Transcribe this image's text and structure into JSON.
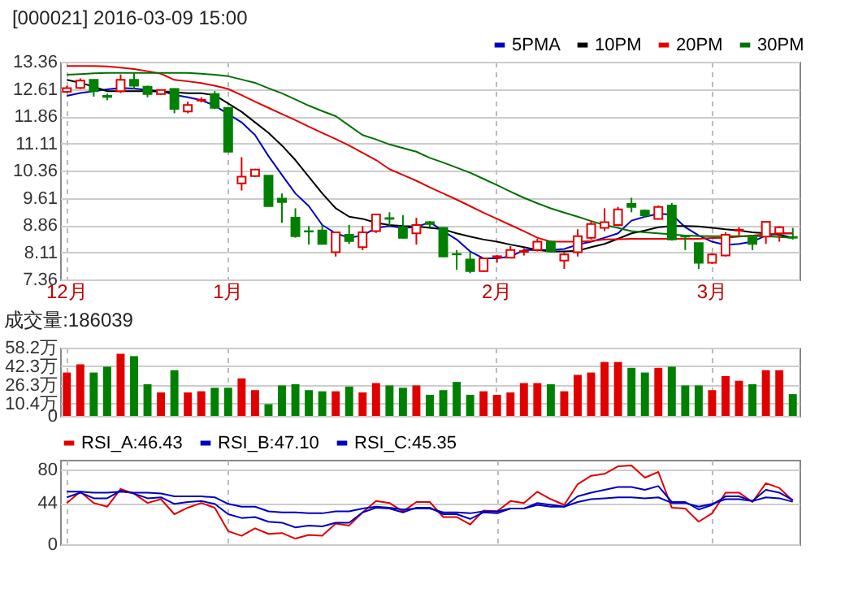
{
  "chart_data": [
    {
      "type": "candlestick",
      "title": "[000021] 2016-03-09 15:00",
      "categories": [
        "12月",
        null,
        null,
        null,
        null,
        null,
        null,
        null,
        null,
        null,
        null,
        null,
        "1月",
        null,
        null,
        null,
        null,
        null,
        null,
        null,
        null,
        null,
        null,
        null,
        null,
        null,
        null,
        null,
        null,
        null,
        null,
        null,
        "2月",
        null,
        null,
        null,
        null,
        null,
        null,
        null,
        null,
        null,
        null,
        null,
        null,
        null,
        null,
        null,
        "3月",
        null,
        null,
        null,
        null,
        null,
        null
      ],
      "ohlc": [
        [
          12.53,
          12.7,
          12.5,
          12.63
        ],
        [
          12.64,
          12.9,
          12.61,
          12.84
        ],
        [
          12.86,
          12.86,
          12.4,
          12.55
        ],
        [
          12.42,
          12.48,
          12.3,
          12.39
        ],
        [
          12.55,
          13.01,
          12.5,
          12.86
        ],
        [
          12.86,
          13.07,
          12.61,
          12.7
        ],
        [
          12.67,
          12.7,
          12.38,
          12.47
        ],
        [
          12.47,
          12.6,
          12.45,
          12.58
        ],
        [
          12.61,
          12.63,
          11.94,
          12.06
        ],
        [
          11.99,
          12.26,
          11.94,
          12.17
        ],
        [
          12.29,
          12.38,
          12.24,
          12.31
        ],
        [
          12.47,
          12.55,
          12.06,
          12.09
        ],
        [
          12.09,
          12.09,
          10.88,
          10.88
        ],
        [
          10.01,
          10.73,
          9.81,
          10.19
        ],
        [
          10.21,
          10.41,
          10.19,
          10.39
        ],
        [
          10.22,
          10.22,
          9.38,
          9.38
        ],
        [
          9.59,
          9.73,
          8.92,
          9.49
        ],
        [
          9.06,
          9.32,
          8.51,
          8.55
        ],
        [
          8.69,
          8.83,
          8.32,
          8.68
        ],
        [
          8.71,
          8.86,
          8.34,
          8.34
        ],
        [
          8.11,
          8.68,
          7.99,
          8.66
        ],
        [
          8.59,
          8.86,
          8.34,
          8.42
        ],
        [
          8.25,
          8.83,
          8.17,
          8.66
        ],
        [
          8.69,
          9.17,
          8.64,
          9.15
        ],
        [
          9.05,
          9.21,
          8.83,
          9.03
        ],
        [
          8.8,
          9.13,
          8.48,
          8.51
        ],
        [
          8.63,
          9.06,
          8.32,
          8.86
        ],
        [
          8.94,
          8.97,
          8.8,
          8.89
        ],
        [
          8.78,
          8.8,
          7.99,
          7.99
        ],
        [
          8.06,
          8.17,
          7.63,
          8.05
        ],
        [
          7.91,
          8.11,
          7.53,
          7.59
        ],
        [
          7.59,
          7.96,
          7.57,
          7.94
        ],
        [
          7.97,
          8.03,
          7.82,
          8.0
        ],
        [
          7.96,
          8.28,
          7.94,
          8.17
        ],
        [
          8.12,
          8.22,
          8.02,
          8.14
        ],
        [
          8.17,
          8.48,
          8.13,
          8.4
        ],
        [
          8.4,
          8.43,
          8.11,
          8.13
        ],
        [
          7.88,
          8.11,
          7.65,
          8.05
        ],
        [
          8.11,
          8.74,
          7.99,
          8.55
        ],
        [
          8.51,
          8.98,
          8.46,
          8.89
        ],
        [
          8.78,
          9.32,
          8.69,
          8.94
        ],
        [
          8.86,
          9.36,
          8.83,
          9.29
        ],
        [
          9.44,
          9.61,
          9.21,
          9.36
        ],
        [
          9.26,
          9.29,
          9.06,
          9.13
        ],
        [
          9.03,
          9.4,
          9.01,
          9.36
        ],
        [
          9.4,
          9.47,
          8.43,
          8.46
        ],
        [
          8.56,
          8.59,
          8.17,
          8.54
        ],
        [
          8.36,
          8.36,
          7.65,
          7.82
        ],
        [
          7.82,
          8.09,
          7.79,
          8.05
        ],
        [
          8.02,
          8.66,
          7.99,
          8.59
        ],
        [
          8.71,
          8.8,
          8.55,
          8.73
        ],
        [
          8.51,
          8.59,
          8.17,
          8.34
        ],
        [
          8.54,
          8.97,
          8.34,
          8.95
        ],
        [
          8.63,
          8.83,
          8.4,
          8.8
        ],
        [
          8.53,
          8.78,
          8.46,
          8.51
        ]
      ],
      "colors": [
        "#e00000",
        "#e00000",
        "#008000",
        "#008000",
        "#e00000",
        "#008000",
        "#008000",
        "#e00000",
        "#008000",
        "#e00000",
        "#e00000",
        "#008000",
        "#008000",
        "#e00000",
        "#e00000",
        "#008000",
        "#008000",
        "#008000",
        "#008000",
        "#008000",
        "#e00000",
        "#008000",
        "#e00000",
        "#e00000",
        "#008000",
        "#008000",
        "#e00000",
        "#008000",
        "#008000",
        "#008000",
        "#008000",
        "#e00000",
        "#e00000",
        "#e00000",
        "#e00000",
        "#e00000",
        "#008000",
        "#e00000",
        "#e00000",
        "#e00000",
        "#e00000",
        "#e00000",
        "#008000",
        "#008000",
        "#e00000",
        "#008000",
        "#008000",
        "#008000",
        "#e00000",
        "#e00000",
        "#e00000",
        "#008000",
        "#e00000",
        "#e00000",
        "#008000"
      ],
      "series": [
        {
          "name": "5PMA",
          "type": "line",
          "color": "#0000c0",
          "values": [
            12.42,
            12.5,
            12.55,
            12.6,
            12.64,
            12.62,
            12.58,
            12.55,
            12.45,
            12.38,
            12.3,
            12.15,
            11.92,
            11.69,
            11.34,
            10.76,
            10.24,
            9.73,
            9.38,
            8.86,
            8.63,
            8.51,
            8.57,
            8.78,
            8.83,
            8.78,
            8.8,
            8.94,
            8.69,
            8.46,
            8.13,
            7.94,
            7.94,
            7.99,
            8.17,
            8.17,
            8.17,
            8.2,
            8.32,
            8.4,
            8.51,
            8.63,
            8.98,
            9.09,
            9.17,
            9.15,
            8.8,
            8.57,
            8.4,
            8.31,
            8.34,
            8.4,
            8.57,
            8.63,
            8.63
          ]
        },
        {
          "name": "10PM",
          "type": "line",
          "color": "#000000",
          "values": [
            12.86,
            12.78,
            12.67,
            12.55,
            12.55,
            12.55,
            12.55,
            12.54,
            12.52,
            12.49,
            12.49,
            12.44,
            12.21,
            11.98,
            11.69,
            11.4,
            11.05,
            10.65,
            10.19,
            9.73,
            9.32,
            9.09,
            9.03,
            8.92,
            8.86,
            8.83,
            8.82,
            8.78,
            8.74,
            8.63,
            8.54,
            8.46,
            8.4,
            8.32,
            8.25,
            8.17,
            8.13,
            8.13,
            8.15,
            8.25,
            8.34,
            8.48,
            8.63,
            8.71,
            8.8,
            8.83,
            8.83,
            8.82,
            8.78,
            8.74,
            8.71,
            8.66,
            8.63,
            8.59,
            8.51
          ]
        },
        {
          "name": "20PM",
          "type": "line",
          "color": "#e00000",
          "values": [
            13.24,
            13.24,
            13.24,
            13.23,
            13.2,
            13.16,
            13.1,
            13.03,
            12.86,
            12.82,
            12.77,
            12.7,
            12.61,
            12.44,
            12.26,
            12.09,
            11.92,
            11.75,
            11.57,
            11.4,
            11.23,
            11.05,
            10.85,
            10.65,
            10.4,
            10.24,
            10.08,
            9.9,
            9.73,
            9.56,
            9.38,
            9.2,
            9.03,
            8.86,
            8.69,
            8.51,
            8.4,
            8.4,
            8.4,
            8.42,
            8.46,
            8.47,
            8.48,
            8.48,
            8.48,
            8.48,
            8.48,
            8.48,
            8.5,
            8.51,
            8.54,
            8.57,
            8.6,
            8.63,
            8.63
          ]
        },
        {
          "name": "30PM",
          "type": "line",
          "color": "#007000",
          "values": [
            13.0,
            13.02,
            13.04,
            13.05,
            13.05,
            13.05,
            13.05,
            13.05,
            13.05,
            13.05,
            13.03,
            13.0,
            12.96,
            12.87,
            12.78,
            12.63,
            12.49,
            12.32,
            12.15,
            12.0,
            11.86,
            11.6,
            11.34,
            11.22,
            11.08,
            10.98,
            10.88,
            10.71,
            10.58,
            10.44,
            10.3,
            10.13,
            9.96,
            9.78,
            9.61,
            9.46,
            9.32,
            9.2,
            9.09,
            8.97,
            8.86,
            8.78,
            8.69,
            8.66,
            8.63,
            8.6,
            8.57,
            8.56,
            8.55,
            8.55,
            8.55,
            8.55,
            8.55,
            8.53,
            8.51
          ]
        }
      ],
      "ylim": [
        7.36,
        13.36
      ],
      "yticks": [
        7.36,
        8.11,
        8.86,
        9.61,
        10.36,
        11.11,
        11.86,
        12.61,
        13.36
      ],
      "grid": true,
      "legend": "top right"
    },
    {
      "type": "bar",
      "title": "成交量:186039",
      "categories": [
        null,
        null,
        null,
        null,
        null,
        null,
        null,
        null,
        null,
        null,
        null,
        null,
        null,
        null,
        null,
        null,
        null,
        null,
        null,
        null,
        null,
        null,
        null,
        null,
        null,
        null,
        null,
        null,
        null,
        null,
        null,
        null,
        null,
        null,
        null,
        null,
        null,
        null,
        null,
        null,
        null,
        null,
        null,
        null,
        null,
        null,
        null,
        null,
        null,
        null,
        null,
        null,
        null,
        null,
        null
      ],
      "values": [
        37,
        44,
        37,
        42,
        53,
        51,
        27,
        20,
        39,
        20,
        21,
        24,
        24,
        32,
        22,
        10,
        26,
        27,
        22,
        21,
        21,
        25,
        20,
        28,
        26,
        24,
        26,
        18,
        22,
        29,
        18,
        21,
        18,
        20,
        28,
        28,
        27,
        21,
        35,
        37,
        46,
        46,
        41,
        37,
        41,
        42,
        26,
        26,
        22,
        34,
        30,
        27,
        39,
        39,
        18.6
      ],
      "colors": [
        "#e00000",
        "#e00000",
        "#008000",
        "#008000",
        "#e00000",
        "#008000",
        "#008000",
        "#e00000",
        "#008000",
        "#e00000",
        "#e00000",
        "#008000",
        "#008000",
        "#e00000",
        "#e00000",
        "#008000",
        "#008000",
        "#008000",
        "#008000",
        "#008000",
        "#e00000",
        "#008000",
        "#e00000",
        "#e00000",
        "#008000",
        "#008000",
        "#e00000",
        "#008000",
        "#008000",
        "#008000",
        "#008000",
        "#e00000",
        "#e00000",
        "#e00000",
        "#e00000",
        "#e00000",
        "#008000",
        "#e00000",
        "#e00000",
        "#e00000",
        "#e00000",
        "#e00000",
        "#008000",
        "#008000",
        "#e00000",
        "#008000",
        "#008000",
        "#008000",
        "#e00000",
        "#e00000",
        "#e00000",
        "#008000",
        "#e00000",
        "#e00000",
        "#008000"
      ],
      "ylim": [
        0,
        58.2
      ],
      "yticks": [
        0,
        {
          "value": 10.4,
          "label": "10.4万"
        },
        {
          "value": 26.3,
          "label": "26.3万"
        },
        {
          "value": 42.3,
          "label": "42.3万"
        },
        {
          "value": 58.2,
          "label": "58.2万"
        }
      ],
      "grid": true,
      "tick_labels": "y"
    },
    {
      "type": "line",
      "categories": [
        null,
        null,
        null,
        null,
        null,
        null,
        null,
        null,
        null,
        null,
        null,
        null,
        null,
        null,
        null,
        null,
        null,
        null,
        null,
        null,
        null,
        null,
        null,
        null,
        null,
        null,
        null,
        null,
        null,
        null,
        null,
        null,
        null,
        null,
        null,
        null,
        null,
        null,
        null,
        null,
        null,
        null,
        null,
        null,
        null,
        null,
        null,
        null,
        null,
        null,
        null,
        null,
        null,
        null,
        null
      ],
      "series": [
        {
          "name": "RSI_A:46.43",
          "color": "#e00000",
          "values": [
            44,
            56,
            44,
            40,
            59,
            54,
            44,
            48,
            32,
            39,
            44,
            39,
            14,
            9,
            17,
            11,
            12,
            6,
            10,
            9,
            22,
            20,
            34,
            46,
            44,
            35,
            45,
            45,
            29,
            29,
            21,
            36,
            35,
            46,
            44,
            56,
            48,
            42,
            64,
            73,
            75,
            83,
            84,
            71,
            77,
            39,
            38,
            24,
            33,
            55,
            55,
            45,
            65,
            60,
            46.43
          ]
        },
        {
          "name": "RSI_B:47.10",
          "color": "#0000c0",
          "values": [
            50,
            55,
            49,
            49,
            57,
            54,
            49,
            50,
            43,
            45,
            46,
            43,
            32,
            28,
            29,
            24,
            23,
            18,
            20,
            19,
            23,
            23,
            34,
            39,
            38,
            34,
            39,
            39,
            32,
            32,
            27,
            34,
            33,
            38,
            38,
            44,
            42,
            40,
            51,
            55,
            58,
            61,
            61,
            58,
            62,
            45,
            45,
            37,
            42,
            51,
            51,
            46,
            58,
            55,
            47.1
          ]
        },
        {
          "name": "RSI_C:45.35",
          "color": "#0000c0",
          "values": [
            56,
            56,
            55,
            55,
            56,
            55,
            55,
            54,
            51,
            51,
            51,
            50,
            43,
            40,
            40,
            35,
            34,
            34,
            33,
            33,
            35,
            35,
            38,
            40,
            39,
            37,
            38,
            38,
            34,
            34,
            33,
            35,
            35,
            38,
            38,
            42,
            40,
            40,
            45,
            48,
            49,
            50,
            50,
            49,
            50,
            44,
            44,
            40,
            43,
            48,
            48,
            46,
            50,
            49,
            45.35
          ]
        }
      ],
      "ylim": [
        0,
        90
      ],
      "yticks": [
        0,
        44,
        80
      ],
      "grid": true,
      "legend": "top left",
      "tick_labels": "y"
    }
  ]
}
